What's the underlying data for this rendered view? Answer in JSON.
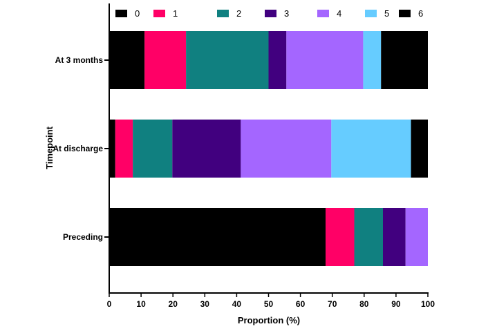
{
  "chart_data": {
    "type": "bar",
    "orientation": "horizontal",
    "stacked": true,
    "xlabel": "Proportion (%)",
    "ylabel": "Timepoint",
    "xlim": [
      0,
      100
    ],
    "xticks": [
      0,
      10,
      20,
      30,
      40,
      50,
      60,
      70,
      80,
      90,
      100
    ],
    "categories": [
      "At 3 months",
      "At discharge",
      "Preceding"
    ],
    "legend_position": "top",
    "grid": false,
    "series": [
      {
        "name": "0",
        "color": "#000000",
        "values": [
          11.1,
          1.9,
          67.9
        ]
      },
      {
        "name": "1",
        "color": "#FF0066",
        "values": [
          13.0,
          5.5,
          9.0
        ]
      },
      {
        "name": "2",
        "color": "#108080",
        "values": [
          25.9,
          12.4,
          9.0
        ]
      },
      {
        "name": "3",
        "color": "#41007F",
        "values": [
          5.6,
          21.5,
          7.1
        ]
      },
      {
        "name": "4",
        "color": "#A466FF",
        "values": [
          24.1,
          28.4,
          7.0
        ]
      },
      {
        "name": "5",
        "color": "#66CCFF",
        "values": [
          5.6,
          25.0,
          0
        ]
      },
      {
        "name": "6",
        "color": "#000000",
        "values": [
          14.7,
          5.3,
          0
        ]
      }
    ]
  }
}
